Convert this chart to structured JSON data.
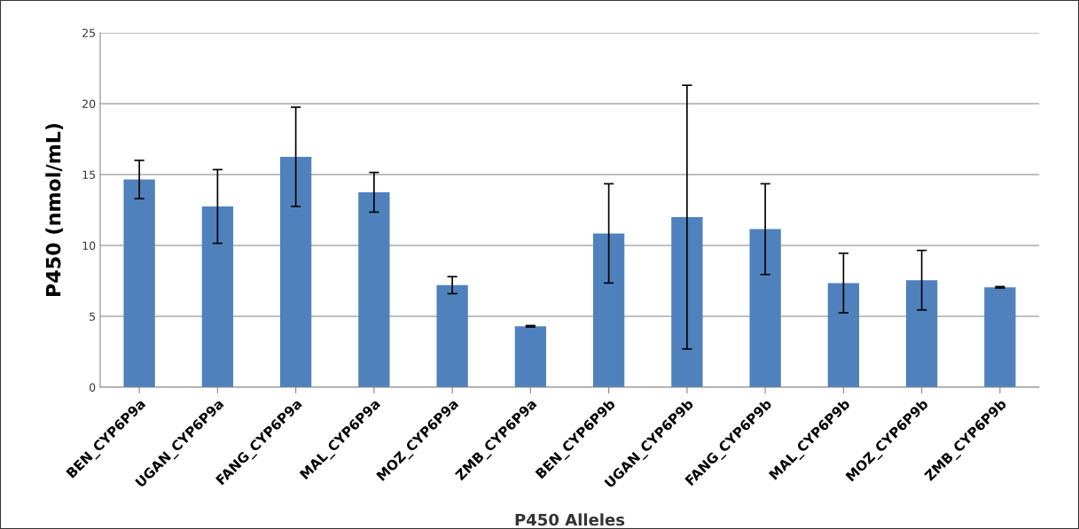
{
  "chart_data": {
    "type": "bar",
    "xlabel": "P450 Alleles",
    "ylabel": "P450 (nmol/mL)",
    "categories": [
      "BEN_CYP6P9a",
      "UGAN_CYP6P9a",
      "FANG_CYP6P9a",
      "MAL_CYP6P9a",
      "MOZ_CYP6P9a",
      "ZMB_CYP6P9a",
      "BEN_CYP6P9b",
      "UGAN_CYP6P9b",
      "FANG_CYP6P9b",
      "MAL_CYP6P9b",
      "MOZ_CYP6P9b",
      "ZMB_CYP6P9b"
    ],
    "values": [
      14.65,
      12.75,
      16.25,
      13.75,
      7.2,
      4.3,
      10.85,
      12.0,
      11.15,
      7.35,
      7.55,
      7.05
    ],
    "errors": [
      1.35,
      2.6,
      3.5,
      1.4,
      0.6,
      0.05,
      3.5,
      9.3,
      3.2,
      2.1,
      2.1,
      0.05
    ],
    "color": "#4f81bd",
    "ylim": [
      0,
      25
    ],
    "yticks": [
      0,
      5,
      10,
      15,
      20,
      25
    ],
    "grid": "y",
    "legend": false
  }
}
